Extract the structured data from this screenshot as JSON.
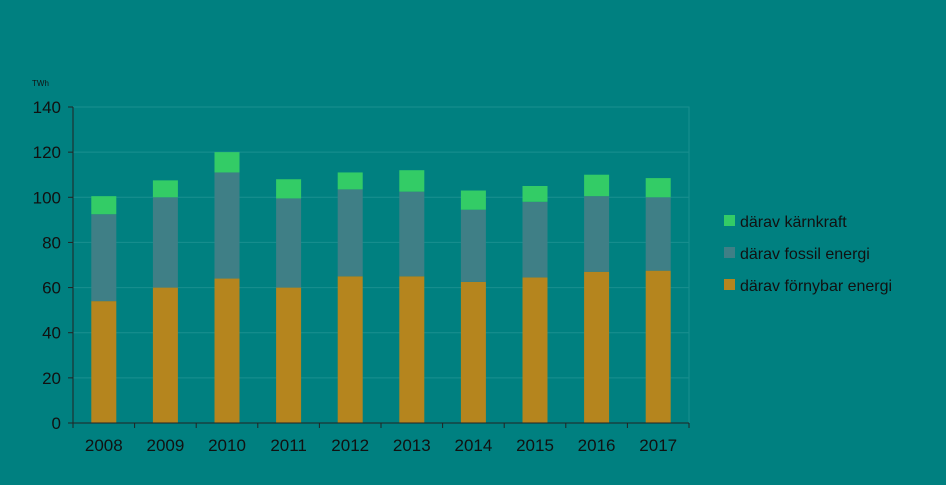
{
  "chart_data": {
    "type": "bar",
    "stacked": true,
    "unit_label": "TWh",
    "categories": [
      "2008",
      "2009",
      "2010",
      "2011",
      "2012",
      "2013",
      "2014",
      "2015",
      "2016",
      "2017"
    ],
    "series": [
      {
        "name": "därav förnybar energi",
        "color": "#B5851E",
        "values": [
          54,
          60,
          64,
          60,
          65,
          65,
          62.5,
          64.5,
          67,
          67.5
        ]
      },
      {
        "name": "därav fossil energi",
        "color": "#3F7F86",
        "values": [
          38.5,
          40,
          47,
          39.5,
          38.5,
          37.5,
          32,
          33.5,
          33.5,
          32.5
        ]
      },
      {
        "name": "därav kärnkraft",
        "color": "#33CC66",
        "values": [
          8,
          7.5,
          9,
          8.5,
          7.5,
          9.5,
          8.5,
          7,
          9.5,
          8.5
        ]
      }
    ],
    "ylim": [
      0,
      140
    ],
    "yticks": [
      0,
      20,
      40,
      60,
      80,
      100,
      120,
      140
    ],
    "grid": true,
    "legend_position": "right",
    "background": "#008080",
    "plot_background": "#008080",
    "grid_color": "#1A8F8F"
  }
}
